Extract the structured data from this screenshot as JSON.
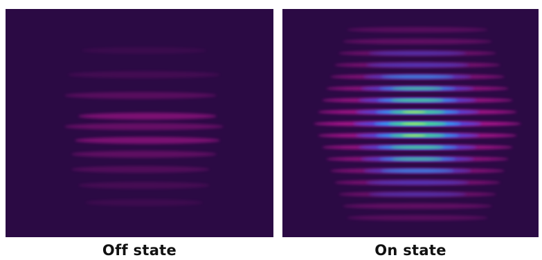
{
  "captions": {
    "off": "Off state",
    "on": "On state"
  },
  "colors": {
    "background": "#2b0a44",
    "magenta": "#c0169a",
    "blue": "#2f5cff",
    "cyan": "#22d3ff",
    "green": "#5dff3a",
    "yellow": "#f2ff3c"
  }
}
